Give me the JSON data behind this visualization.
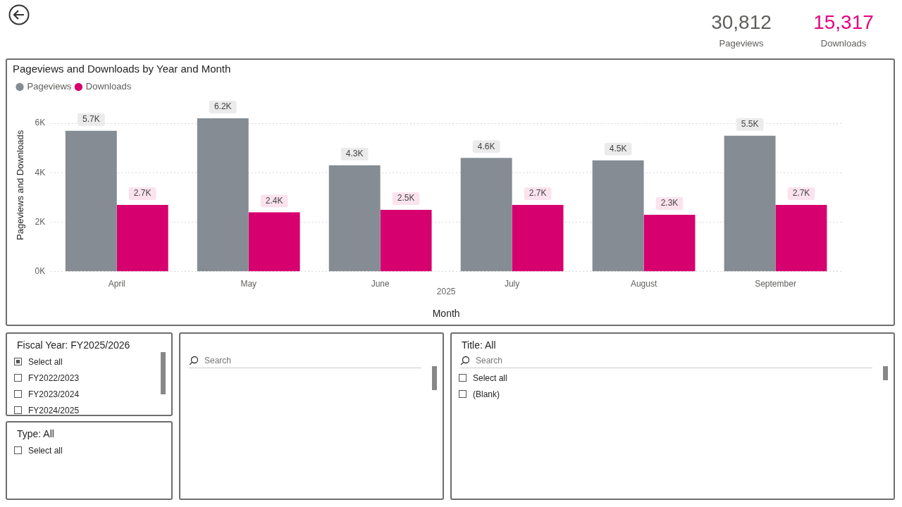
{
  "chart_data": [
    {
      "type": "bar",
      "title": "Pageviews and Downloads by Year and Month",
      "xlabel": "Month",
      "ylabel": "Pageviews and Downloads",
      "categories": [
        "April",
        "May",
        "June",
        "July",
        "August",
        "September"
      ],
      "series": [
        {
          "name": "Pageviews",
          "color": "#858c93",
          "values": [
            5700,
            6200,
            4300,
            4600,
            4500,
            5500
          ],
          "value_labels": [
            "5.7K",
            "6.2K",
            "4.3K",
            "4.6K",
            "4.5K",
            "5.5K"
          ]
        },
        {
          "name": "Downloads",
          "color": "#d6006f",
          "values": [
            2700,
            2400,
            2500,
            2700,
            2300,
            2700
          ],
          "value_labels": [
            "2.7K",
            "2.4K",
            "2.5K",
            "2.7K",
            "2.3K",
            "2.7K"
          ]
        }
      ],
      "ylim": [
        0,
        7000
      ],
      "yticks": [
        {
          "value": 0,
          "label": "0K"
        },
        {
          "value": 2000,
          "label": "2K"
        },
        {
          "value": 4000,
          "label": "4K"
        },
        {
          "value": 6000,
          "label": "6K"
        }
      ],
      "grid": "y",
      "legend": "top left",
      "annotations": [
        "2025"
      ]
    },
    {
      "type": "other",
      "title": "30,812",
      "subtitle": "Pageviews"
    },
    {
      "type": "other",
      "title": "15,317",
      "subtitle": "Downloads"
    },
    {
      "type": "other",
      "title": "Fiscal Year: FY2025/2026",
      "annotations": [
        "Select all",
        "FY2022/2023",
        "FY2023/2024",
        "FY2024/2025"
      ]
    },
    {
      "type": "other",
      "annotations": [
        "Search"
      ]
    },
    {
      "type": "other",
      "title": "Type: All",
      "annotations": [
        "Select all"
      ]
    },
    {
      "type": "other",
      "title": "Title: All",
      "annotations": [
        "Search",
        "Select all",
        "(Blank)"
      ]
    }
  ]
}
